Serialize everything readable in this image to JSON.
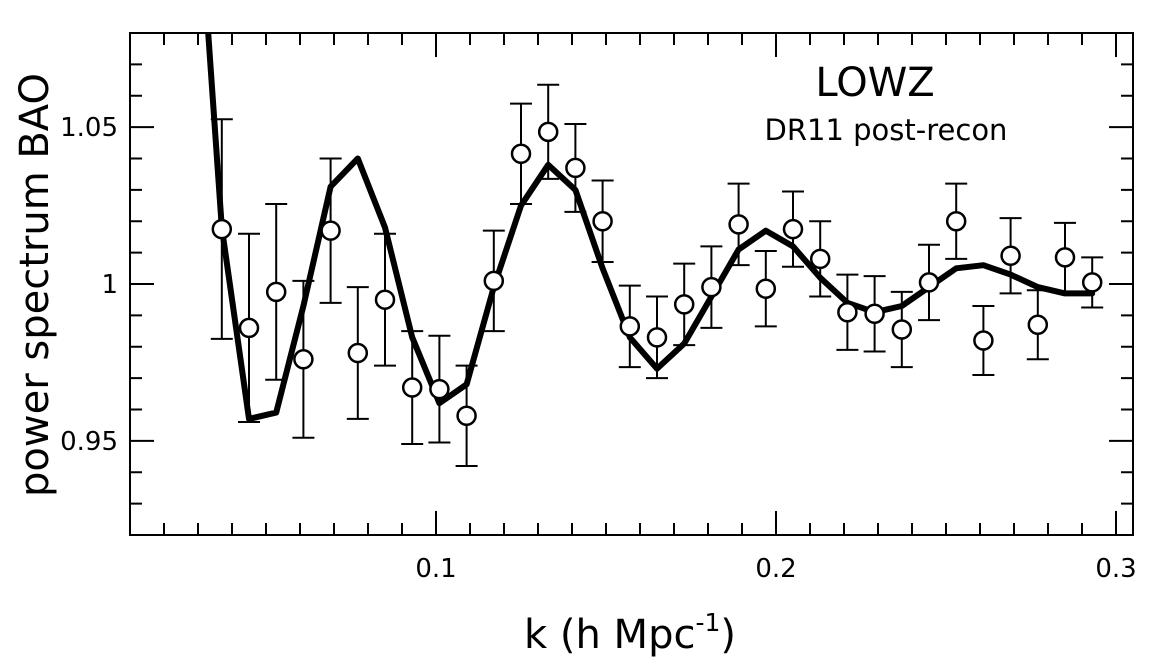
{
  "chart_data": {
    "type": "line",
    "xlabel": "k (h Mpc",
    "xlabel_superscript": "-1",
    "xlabel_suffix": ")",
    "ylabel": "power spectrum BAO",
    "xlim": [
      0.01,
      0.305
    ],
    "ylim": [
      0.92,
      1.08
    ],
    "x_ticks": [
      0.1,
      0.2,
      0.3
    ],
    "x_tick_labels": [
      "0.1",
      "0.2",
      "0.3"
    ],
    "y_ticks": [
      0.95,
      1.0,
      1.05
    ],
    "y_tick_labels": [
      "0.95",
      "1",
      "1.05"
    ],
    "grid": false,
    "legend": "none",
    "annotations": [
      "LOWZ",
      "DR11 post-recon"
    ],
    "series": [
      {
        "kind": "model",
        "style": "thick black line",
        "x": [
          0.033,
          0.037,
          0.045,
          0.053,
          0.061,
          0.069,
          0.077,
          0.085,
          0.093,
          0.101,
          0.109,
          0.117,
          0.125,
          0.133,
          0.141,
          0.149,
          0.157,
          0.165,
          0.173,
          0.181,
          0.189,
          0.197,
          0.205,
          0.213,
          0.221,
          0.229,
          0.237,
          0.245,
          0.253,
          0.261,
          0.269,
          0.277,
          0.285,
          0.293
        ],
        "y": [
          1.08,
          1.018,
          0.957,
          0.959,
          0.993,
          1.031,
          1.04,
          1.018,
          0.983,
          0.962,
          0.968,
          0.999,
          1.025,
          1.038,
          1.03,
          1.005,
          0.983,
          0.973,
          0.981,
          0.996,
          1.011,
          1.017,
          1.012,
          1.002,
          0.994,
          0.991,
          0.993,
          0.999,
          1.005,
          1.006,
          1.003,
          0.999,
          0.997,
          0.997
        ]
      },
      {
        "kind": "data",
        "style": "open circles with error bars",
        "x": [
          0.037,
          0.045,
          0.053,
          0.061,
          0.069,
          0.077,
          0.085,
          0.093,
          0.101,
          0.109,
          0.117,
          0.125,
          0.133,
          0.141,
          0.149,
          0.157,
          0.165,
          0.173,
          0.181,
          0.189,
          0.197,
          0.205,
          0.213,
          0.221,
          0.229,
          0.237,
          0.245,
          0.253,
          0.261,
          0.269,
          0.277,
          0.285,
          0.293
        ],
        "y": [
          1.0175,
          0.986,
          0.9975,
          0.976,
          1.017,
          0.978,
          0.995,
          0.967,
          0.9665,
          0.958,
          1.001,
          1.0415,
          1.0485,
          1.037,
          1.02,
          0.9865,
          0.983,
          0.9935,
          0.999,
          1.019,
          0.9985,
          1.0175,
          1.008,
          0.991,
          0.9905,
          0.9855,
          1.0005,
          1.02,
          0.982,
          1.009,
          0.987,
          1.0085,
          1.0005
        ],
        "yerr": [
          0.035,
          0.03,
          0.028,
          0.025,
          0.023,
          0.021,
          0.021,
          0.018,
          0.017,
          0.016,
          0.016,
          0.016,
          0.015,
          0.014,
          0.013,
          0.013,
          0.013,
          0.013,
          0.013,
          0.013,
          0.012,
          0.012,
          0.012,
          0.012,
          0.012,
          0.012,
          0.012,
          0.012,
          0.011,
          0.012,
          0.011,
          0.011,
          0.008
        ]
      }
    ]
  }
}
